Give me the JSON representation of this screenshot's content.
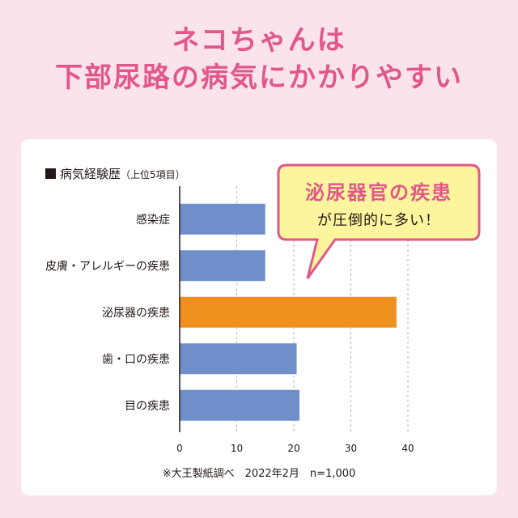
{
  "header": {
    "line1": "ネコちゃんは",
    "line2": "下部尿路の病気にかかりやすい"
  },
  "chart_title": "病気経験歴",
  "chart_subtitle": "（上位5項目）",
  "callout": {
    "main": "泌尿器官の疾患",
    "sub": "が圧倒的に多い！"
  },
  "footnote": "※大王製紙調べ　2022年2月　n=1,000",
  "colors": {
    "header_text": "#e2578a",
    "bar_default": "#6f8fcb",
    "bar_highlight": "#f0901e",
    "callout_fill": "#fdf59e",
    "callout_border": "#e2578a"
  },
  "chart_data": {
    "type": "bar",
    "orientation": "horizontal",
    "categories": [
      "感染症",
      "皮膚・アレルギーの疾患",
      "泌尿器の疾患",
      "歯・口の疾患",
      "目の疾患"
    ],
    "values": [
      15,
      15,
      38,
      20.5,
      21
    ],
    "highlight_index": 2,
    "xlim": [
      0,
      40
    ],
    "xticks": [
      0,
      10,
      20,
      30,
      40
    ],
    "grid": true
  }
}
